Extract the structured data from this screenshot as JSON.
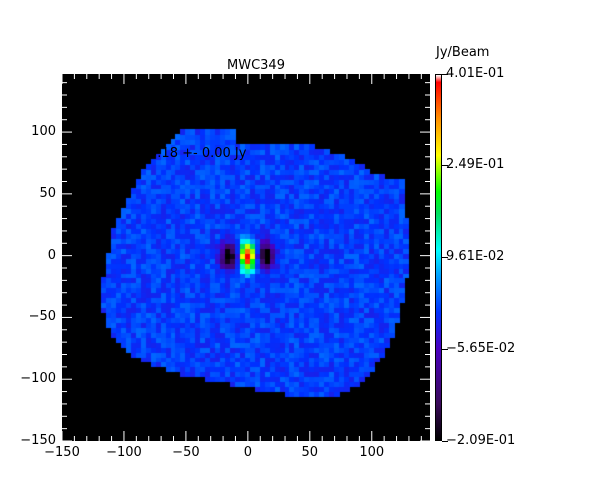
{
  "chart_data": {
    "type": "heatmap",
    "title": "MWC349",
    "xlabel": "",
    "ylabel": "",
    "xlim": [
      -150,
      147
    ],
    "ylim": [
      -150,
      147
    ],
    "x_ticks": [
      "−150",
      "−100",
      "−50",
      "0",
      "50",
      "100"
    ],
    "x_tick_values": [
      -150,
      -100,
      -50,
      0,
      50,
      100
    ],
    "y_ticks": [
      "100",
      "50",
      "0",
      "−50",
      "−100",
      "−150"
    ],
    "y_tick_values": [
      100,
      50,
      0,
      -50,
      -100,
      -150
    ],
    "annotation": "=    0.18 +-    0.00 Jy",
    "colorbar": {
      "label": "Jy/Beam",
      "min": -0.209,
      "max": 0.401,
      "ticks": [
        "4.01E-01",
        "2.49E-01",
        "9.61E-02",
        "−5.65E-02",
        "−2.09E-01"
      ],
      "tick_values": [
        0.401,
        0.249,
        0.0961,
        -0.0565,
        -0.209
      ],
      "colormap": "rainbow"
    },
    "source": {
      "peak_x": 0,
      "peak_y": 0,
      "peak_value": 0.401,
      "negative_lobes_x": [
        -15,
        15
      ]
    }
  }
}
